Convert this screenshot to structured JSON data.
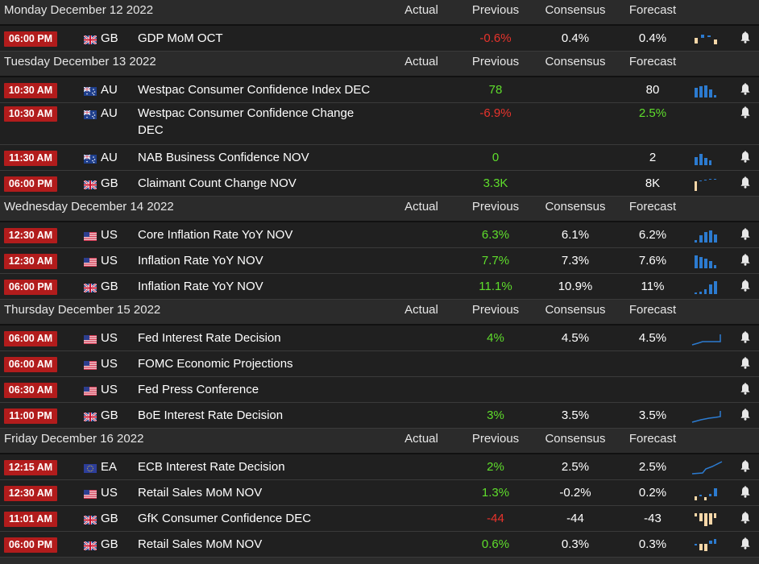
{
  "columns": {
    "actual": "Actual",
    "previous": "Previous",
    "consensus": "Consensus",
    "forecast": "Forecast"
  },
  "colors": {
    "positive": "#5fde2c",
    "negative": "#e8332c",
    "time_badge": "#b21c1c"
  },
  "days": [
    {
      "label": "Monday December 12 2022",
      "events": [
        {
          "time": "06:00 PM",
          "flag": "gb-flag-icon",
          "country": "GB",
          "name": [
            "GDP MoM OCT"
          ],
          "actual": "",
          "previous": "-0.6%",
          "previous_color": "red",
          "consensus": "0.4%",
          "forecast": "0.4%",
          "spark": "bars-mixed",
          "bell": true
        }
      ]
    },
    {
      "label": "Tuesday December 13 2022",
      "events": [
        {
          "time": "10:30 AM",
          "flag": "au-flag-icon",
          "country": "AU",
          "name": [
            "Westpac Consumer Confidence Index DEC"
          ],
          "actual": "",
          "previous": "78",
          "previous_color": "green",
          "consensus": "",
          "forecast": "80",
          "spark": "bars-blue",
          "bell": true
        },
        {
          "time": "10:30 AM",
          "flag": "au-flag-icon",
          "country": "AU",
          "name": [
            "Westpac Consumer Confidence Change",
            "DEC"
          ],
          "actual": "",
          "previous": "-6.9%",
          "previous_color": "red",
          "consensus": "",
          "forecast": "2.5%",
          "forecast_color": "green",
          "spark": "",
          "bell": true
        },
        {
          "time": "11:30 AM",
          "flag": "au-flag-icon",
          "country": "AU",
          "name": [
            "NAB Business Confidence NOV"
          ],
          "actual": "",
          "previous": "0",
          "previous_color": "green",
          "consensus": "",
          "forecast": "2",
          "spark": "bars-blue-small",
          "bell": true
        },
        {
          "time": "06:00 PM",
          "flag": "gb-flag-icon",
          "country": "GB",
          "name": [
            "Claimant Count Change NOV"
          ],
          "actual": "",
          "previous": "3.3K",
          "previous_color": "green",
          "consensus": "",
          "forecast": "8K",
          "spark": "bars-claimant",
          "bell": true
        }
      ]
    },
    {
      "label": "Wednesday December 14 2022",
      "events": [
        {
          "time": "12:30 AM",
          "flag": "us-flag-icon",
          "country": "US",
          "name": [
            "Core Inflation Rate YoY NOV"
          ],
          "actual": "",
          "previous": "6.3%",
          "previous_color": "green",
          "consensus": "6.1%",
          "forecast": "6.2%",
          "spark": "bars-rising",
          "bell": true
        },
        {
          "time": "12:30 AM",
          "flag": "us-flag-icon",
          "country": "US",
          "name": [
            "Inflation Rate YoY NOV"
          ],
          "actual": "",
          "previous": "7.7%",
          "previous_color": "green",
          "consensus": "7.3%",
          "forecast": "7.6%",
          "spark": "bars-falling",
          "bell": true
        },
        {
          "time": "06:00 PM",
          "flag": "gb-flag-icon",
          "country": "GB",
          "name": [
            "Inflation Rate YoY NOV"
          ],
          "actual": "",
          "previous": "11.1%",
          "previous_color": "green",
          "consensus": "10.9%",
          "forecast": "11%",
          "spark": "bars-gb-infl",
          "bell": true
        }
      ]
    },
    {
      "label": "Thursday December 15 2022",
      "events": [
        {
          "time": "06:00 AM",
          "flag": "us-flag-icon",
          "country": "US",
          "name": [
            "Fed Interest Rate Decision"
          ],
          "actual": "",
          "previous": "4%",
          "previous_color": "green",
          "consensus": "4.5%",
          "forecast": "4.5%",
          "spark": "line-step",
          "bell": true
        },
        {
          "time": "06:00 AM",
          "flag": "us-flag-icon",
          "country": "US",
          "name": [
            "FOMC Economic Projections"
          ],
          "actual": "",
          "previous": "",
          "consensus": "",
          "forecast": "",
          "spark": "",
          "bell": true
        },
        {
          "time": "06:30 AM",
          "flag": "us-flag-icon",
          "country": "US",
          "name": [
            "Fed Press Conference"
          ],
          "actual": "",
          "previous": "",
          "consensus": "",
          "forecast": "",
          "spark": "",
          "bell": true
        },
        {
          "time": "11:00 PM",
          "flag": "gb-flag-icon",
          "country": "GB",
          "name": [
            "BoE Interest Rate Decision"
          ],
          "actual": "",
          "previous": "3%",
          "previous_color": "green",
          "consensus": "3.5%",
          "forecast": "3.5%",
          "spark": "line-rise",
          "bell": true
        }
      ]
    },
    {
      "label": "Friday December 16 2022",
      "events": [
        {
          "time": "12:15 AM",
          "flag": "eu-flag-icon",
          "country": "EA",
          "name": [
            "ECB Interest Rate Decision"
          ],
          "actual": "",
          "previous": "2%",
          "previous_color": "green",
          "consensus": "2.5%",
          "forecast": "2.5%",
          "spark": "line-ecb",
          "bell": true
        },
        {
          "time": "12:30 AM",
          "flag": "us-flag-icon",
          "country": "US",
          "name": [
            "Retail Sales MoM NOV"
          ],
          "actual": "",
          "previous": "1.3%",
          "previous_color": "green",
          "consensus": "-0.2%",
          "forecast": "0.2%",
          "spark": "bars-retail-us",
          "bell": true
        },
        {
          "time": "11:01 AM",
          "flag": "gb-flag-icon",
          "country": "GB",
          "name": [
            "GfK Consumer Confidence DEC"
          ],
          "actual": "",
          "previous": "-44",
          "previous_color": "red",
          "consensus": "-44",
          "forecast": "-43",
          "spark": "bars-gfk",
          "bell": true
        },
        {
          "time": "06:00 PM",
          "flag": "gb-flag-icon",
          "country": "GB",
          "name": [
            "Retail Sales MoM NOV"
          ],
          "actual": "",
          "previous": "0.6%",
          "previous_color": "green",
          "consensus": "0.3%",
          "forecast": "0.3%",
          "spark": "bars-retail-gb",
          "bell": true
        }
      ]
    }
  ]
}
